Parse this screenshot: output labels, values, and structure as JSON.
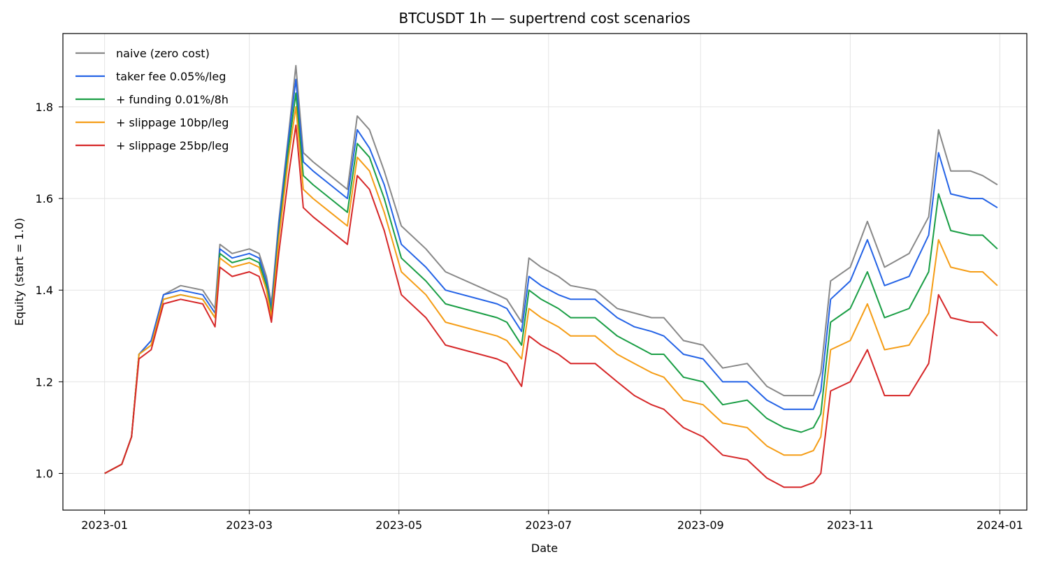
{
  "chart_data": {
    "type": "line",
    "title": "BTCUSDT 1h — supertrend cost scenarios",
    "xlabel": "Date",
    "ylabel": "Equity (start = 1.0)",
    "xlim": [
      "2022-12-15",
      "2024-01-12"
    ],
    "ylim": [
      0.92,
      1.96
    ],
    "x_ticks": [
      "2023-01",
      "2023-03",
      "2023-05",
      "2023-07",
      "2023-09",
      "2023-11",
      "2024-01"
    ],
    "y_ticks": [
      "1.0",
      "1.2",
      "1.4",
      "1.6",
      "1.8"
    ],
    "grid": true,
    "legend_position": "upper-left",
    "x": [
      "2023-01-01",
      "2023-01-08",
      "2023-01-10",
      "2023-01-12",
      "2023-01-15",
      "2023-01-20",
      "2023-01-25",
      "2023-02-01",
      "2023-02-10",
      "2023-02-15",
      "2023-02-17",
      "2023-02-22",
      "2023-03-01",
      "2023-03-05",
      "2023-03-08",
      "2023-03-10",
      "2023-03-13",
      "2023-03-17",
      "2023-03-20",
      "2023-03-23",
      "2023-03-27",
      "2023-04-03",
      "2023-04-10",
      "2023-04-14",
      "2023-04-19",
      "2023-04-25",
      "2023-05-02",
      "2023-05-12",
      "2023-05-20",
      "2023-06-10",
      "2023-06-14",
      "2023-06-20",
      "2023-06-23",
      "2023-06-28",
      "2023-07-05",
      "2023-07-10",
      "2023-07-20",
      "2023-07-29",
      "2023-08-05",
      "2023-08-12",
      "2023-08-17",
      "2023-08-25",
      "2023-09-02",
      "2023-09-10",
      "2023-09-20",
      "2023-09-28",
      "2023-10-05",
      "2023-10-12",
      "2023-10-17",
      "2023-10-20",
      "2023-10-24",
      "2023-11-01",
      "2023-11-08",
      "2023-11-15",
      "2023-11-25",
      "2023-12-03",
      "2023-12-07",
      "2023-12-12",
      "2023-12-20",
      "2023-12-25",
      "2023-12-31"
    ],
    "series": [
      {
        "name": "naive (zero cost)",
        "color": "#888888",
        "values": [
          1.0,
          1.02,
          1.05,
          1.08,
          1.26,
          1.29,
          1.39,
          1.41,
          1.4,
          1.36,
          1.5,
          1.48,
          1.49,
          1.48,
          1.43,
          1.37,
          1.55,
          1.74,
          1.89,
          1.7,
          1.68,
          1.65,
          1.62,
          1.78,
          1.75,
          1.66,
          1.54,
          1.49,
          1.44,
          1.39,
          1.38,
          1.33,
          1.47,
          1.45,
          1.43,
          1.41,
          1.4,
          1.36,
          1.35,
          1.34,
          1.34,
          1.29,
          1.28,
          1.23,
          1.24,
          1.19,
          1.17,
          1.17,
          1.17,
          1.22,
          1.42,
          1.45,
          1.55,
          1.45,
          1.48,
          1.56,
          1.75,
          1.66,
          1.66,
          1.65,
          1.63
        ]
      },
      {
        "name": "taker fee 0.05%/leg",
        "color": "#2463e6",
        "values": [
          1.0,
          1.02,
          1.05,
          1.08,
          1.26,
          1.29,
          1.39,
          1.4,
          1.39,
          1.35,
          1.49,
          1.47,
          1.48,
          1.47,
          1.42,
          1.36,
          1.54,
          1.73,
          1.86,
          1.68,
          1.66,
          1.63,
          1.6,
          1.75,
          1.71,
          1.63,
          1.5,
          1.45,
          1.4,
          1.37,
          1.36,
          1.31,
          1.43,
          1.41,
          1.39,
          1.38,
          1.38,
          1.34,
          1.32,
          1.31,
          1.3,
          1.26,
          1.25,
          1.2,
          1.2,
          1.16,
          1.14,
          1.14,
          1.14,
          1.18,
          1.38,
          1.42,
          1.51,
          1.41,
          1.43,
          1.52,
          1.7,
          1.61,
          1.6,
          1.6,
          1.58
        ]
      },
      {
        "name": "+ funding 0.01%/8h",
        "color": "#1a9e45",
        "values": [
          1.0,
          1.02,
          1.05,
          1.08,
          1.26,
          1.28,
          1.38,
          1.39,
          1.38,
          1.34,
          1.48,
          1.46,
          1.47,
          1.46,
          1.41,
          1.35,
          1.52,
          1.71,
          1.83,
          1.65,
          1.63,
          1.6,
          1.57,
          1.72,
          1.69,
          1.6,
          1.47,
          1.42,
          1.37,
          1.34,
          1.33,
          1.28,
          1.4,
          1.38,
          1.36,
          1.34,
          1.34,
          1.3,
          1.28,
          1.26,
          1.26,
          1.21,
          1.2,
          1.15,
          1.16,
          1.12,
          1.1,
          1.09,
          1.1,
          1.13,
          1.33,
          1.36,
          1.44,
          1.34,
          1.36,
          1.44,
          1.61,
          1.53,
          1.52,
          1.52,
          1.49
        ]
      },
      {
        "name": "+ slippage 10bp/leg",
        "color": "#f59d16",
        "values": [
          1.0,
          1.02,
          1.05,
          1.08,
          1.26,
          1.28,
          1.38,
          1.39,
          1.38,
          1.34,
          1.47,
          1.45,
          1.46,
          1.45,
          1.4,
          1.34,
          1.51,
          1.69,
          1.8,
          1.62,
          1.6,
          1.57,
          1.54,
          1.69,
          1.66,
          1.57,
          1.44,
          1.39,
          1.33,
          1.3,
          1.29,
          1.25,
          1.36,
          1.34,
          1.32,
          1.3,
          1.3,
          1.26,
          1.24,
          1.22,
          1.21,
          1.16,
          1.15,
          1.11,
          1.1,
          1.06,
          1.04,
          1.04,
          1.05,
          1.08,
          1.27,
          1.29,
          1.37,
          1.27,
          1.28,
          1.35,
          1.51,
          1.45,
          1.44,
          1.44,
          1.41
        ]
      },
      {
        "name": "+ slippage 25bp/leg",
        "color": "#d62728",
        "values": [
          1.0,
          1.02,
          1.05,
          1.08,
          1.25,
          1.27,
          1.37,
          1.38,
          1.37,
          1.32,
          1.45,
          1.43,
          1.44,
          1.43,
          1.38,
          1.33,
          1.48,
          1.65,
          1.76,
          1.58,
          1.56,
          1.53,
          1.5,
          1.65,
          1.62,
          1.53,
          1.39,
          1.34,
          1.28,
          1.25,
          1.24,
          1.19,
          1.3,
          1.28,
          1.26,
          1.24,
          1.24,
          1.2,
          1.17,
          1.15,
          1.14,
          1.1,
          1.08,
          1.04,
          1.03,
          0.99,
          0.97,
          0.97,
          0.98,
          1.0,
          1.18,
          1.2,
          1.27,
          1.17,
          1.17,
          1.24,
          1.39,
          1.34,
          1.33,
          1.33,
          1.3
        ]
      }
    ]
  }
}
